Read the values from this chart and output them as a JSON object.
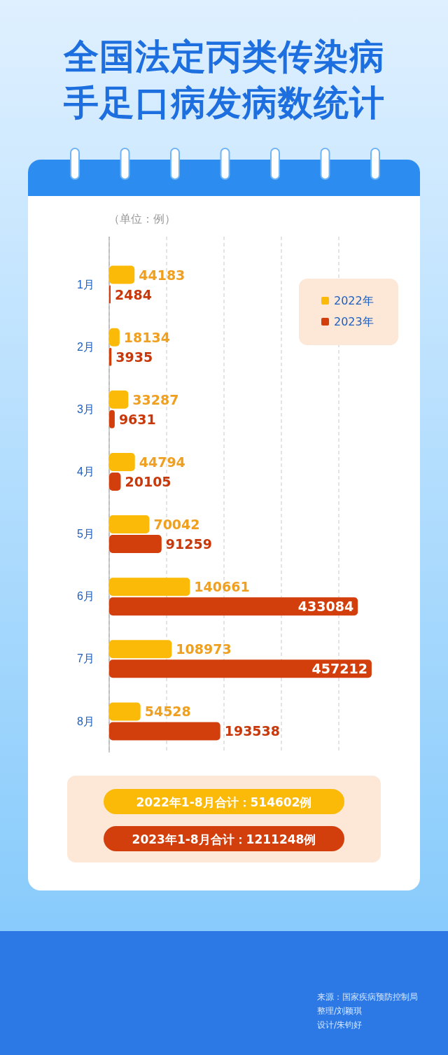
{
  "chart_data": {
    "type": "bar",
    "orientation": "horizontal",
    "title": "全国法定丙类传染病手足口病发病数统计",
    "categories": [
      "1月",
      "2月",
      "3月",
      "4月",
      "5月",
      "6月",
      "7月",
      "8月"
    ],
    "series": [
      {
        "name": "2022年",
        "color": "#fbba08",
        "values": [
          44183,
          18134,
          33287,
          44794,
          70042,
          140661,
          108973,
          54528
        ]
      },
      {
        "name": "2023年",
        "color": "#d23f0c",
        "values": [
          2484,
          3935,
          9631,
          20105,
          91259,
          433084,
          457212,
          193538
        ]
      }
    ],
    "xlim": [
      0,
      500000
    ],
    "xticks": [
      {
        "value": 0,
        "label": null
      },
      {
        "value": 100000,
        "label": null
      },
      {
        "value": 200000,
        "label": null
      },
      {
        "value": 300000,
        "label": null
      },
      {
        "value": 400000,
        "label": null
      }
    ],
    "tick_labels": "y",
    "grid": "x",
    "legend": "top right",
    "data_labels": true,
    "annotations": [
      "（单位：例）",
      "2022年1-8月合计：514602例",
      "2023年1-8月合计：1211248例",
      "来源：国家疾病预防控制局",
      "整理/刘颖琪",
      "设计/朱钧好"
    ]
  }
}
